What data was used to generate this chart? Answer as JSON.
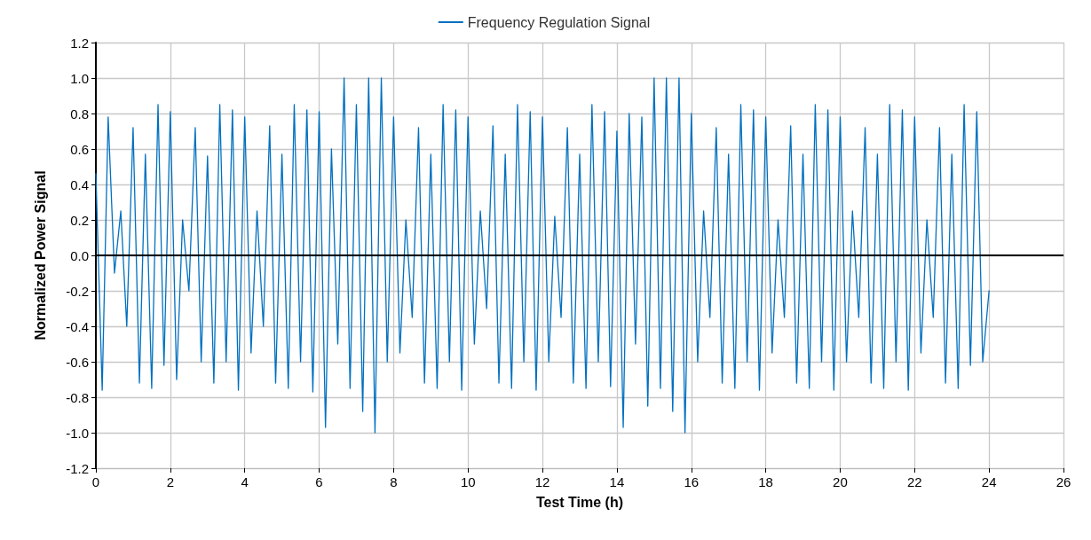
{
  "chart_data": {
    "type": "line",
    "xlabel": "Test Time (h)",
    "ylabel": "Normalized Power Signal",
    "xlim": [
      0,
      26
    ],
    "xticks": [
      0,
      2,
      4,
      6,
      8,
      10,
      12,
      14,
      16,
      18,
      20,
      22,
      24,
      26
    ],
    "ylim": [
      -1.2,
      1.2
    ],
    "yticks": [
      {
        "value": -1.2,
        "label": "-1.2"
      },
      {
        "value": -1,
        "label": "-1.0"
      },
      {
        "value": -0.8,
        "label": "-0.8"
      },
      {
        "value": -0.6,
        "label": "-0.6"
      },
      {
        "value": -0.4,
        "label": "-0.4"
      },
      {
        "value": -0.2,
        "label": "-0.2"
      },
      {
        "value": 0,
        "label": "0.0"
      },
      {
        "value": 0.2,
        "label": "0.2"
      },
      {
        "value": 0.4,
        "label": "0.4"
      },
      {
        "value": 0.6,
        "label": "0.6"
      },
      {
        "value": 0.8,
        "label": "0.8"
      },
      {
        "value": 1,
        "label": "1.0"
      },
      {
        "value": 1.2,
        "label": "1.2"
      }
    ],
    "grid": true,
    "legend": "top",
    "marker": "none",
    "line_style": "solid",
    "ref_lines": [
      {
        "axis": "y",
        "value": 0,
        "color": "#000000"
      }
    ],
    "series": [
      {
        "name": "Frequency Regulation Signal",
        "color": "#0070c0",
        "x": [
          0,
          0.17,
          0.33,
          0.5,
          0.67,
          0.83,
          1,
          1.17,
          1.33,
          1.5,
          1.67,
          1.83,
          2,
          2.17,
          2.33,
          2.5,
          2.67,
          2.83,
          3,
          3.17,
          3.33,
          3.5,
          3.67,
          3.83,
          4,
          4.17,
          4.33,
          4.5,
          4.67,
          4.83,
          5,
          5.17,
          5.33,
          5.5,
          5.67,
          5.83,
          6,
          6.17,
          6.33,
          6.5,
          6.67,
          6.83,
          7,
          7.17,
          7.33,
          7.5,
          7.67,
          7.83,
          8,
          8.17,
          8.33,
          8.5,
          8.67,
          8.83,
          9,
          9.17,
          9.33,
          9.5,
          9.67,
          9.83,
          10,
          10.17,
          10.33,
          10.5,
          10.67,
          10.83,
          11,
          11.17,
          11.33,
          11.5,
          11.67,
          11.83,
          12,
          12.17,
          12.33,
          12.5,
          12.67,
          12.83,
          13,
          13.17,
          13.33,
          13.5,
          13.67,
          13.83,
          14,
          14.17,
          14.33,
          14.5,
          14.67,
          14.83,
          15,
          15.17,
          15.33,
          15.5,
          15.67,
          15.83,
          16,
          16.17,
          16.33,
          16.5,
          16.67,
          16.83,
          17,
          17.17,
          17.33,
          17.5,
          17.67,
          17.83,
          18,
          18.17,
          18.33,
          18.5,
          18.67,
          18.83,
          19,
          19.17,
          19.33,
          19.5,
          19.67,
          19.83,
          20,
          20.17,
          20.33,
          20.5,
          20.67,
          20.83,
          21,
          21.17,
          21.33,
          21.5,
          21.67,
          21.83,
          22,
          22.17,
          22.33,
          22.5,
          22.67,
          22.83,
          23,
          23.17,
          23.33,
          23.5,
          23.67,
          23.83,
          24
        ],
        "values": [
          0.46,
          -0.76,
          0.78,
          -0.1,
          0.25,
          -0.4,
          0.72,
          -0.72,
          0.57,
          -0.75,
          0.85,
          -0.62,
          0.81,
          -0.7,
          0.2,
          -0.2,
          0.72,
          -0.6,
          0.56,
          -0.72,
          0.85,
          -0.6,
          0.82,
          -0.76,
          0.78,
          -0.55,
          0.25,
          -0.4,
          0.73,
          -0.72,
          0.57,
          -0.75,
          0.85,
          -0.6,
          0.82,
          -0.77,
          0.81,
          -0.97,
          0.6,
          -0.5,
          1.0,
          -0.75,
          0.85,
          -0.88,
          1.0,
          -1.0,
          1.0,
          -0.6,
          0.78,
          -0.55,
          0.2,
          -0.35,
          0.72,
          -0.72,
          0.57,
          -0.75,
          0.85,
          -0.6,
          0.82,
          -0.76,
          0.78,
          -0.5,
          0.25,
          -0.3,
          0.73,
          -0.72,
          0.57,
          -0.75,
          0.85,
          -0.6,
          0.81,
          -0.76,
          0.78,
          -0.6,
          0.22,
          -0.35,
          0.72,
          -0.72,
          0.57,
          -0.75,
          0.85,
          -0.6,
          0.81,
          -0.74,
          0.7,
          -0.97,
          0.8,
          -0.5,
          0.78,
          -0.85,
          1.0,
          -0.75,
          1.0,
          -0.88,
          1.0,
          -1.0,
          0.8,
          -0.6,
          0.25,
          -0.35,
          0.72,
          -0.72,
          0.57,
          -0.75,
          0.85,
          -0.6,
          0.82,
          -0.76,
          0.78,
          -0.55,
          0.2,
          -0.35,
          0.73,
          -0.72,
          0.57,
          -0.75,
          0.85,
          -0.6,
          0.82,
          -0.76,
          0.78,
          -0.6,
          0.25,
          -0.35,
          0.72,
          -0.72,
          0.57,
          -0.75,
          0.85,
          -0.6,
          0.82,
          -0.76,
          0.78,
          -0.55,
          0.2,
          -0.35,
          0.72,
          -0.72,
          0.57,
          -0.75,
          0.85,
          -0.62,
          0.81,
          -0.6,
          -0.2
        ]
      }
    ]
  }
}
